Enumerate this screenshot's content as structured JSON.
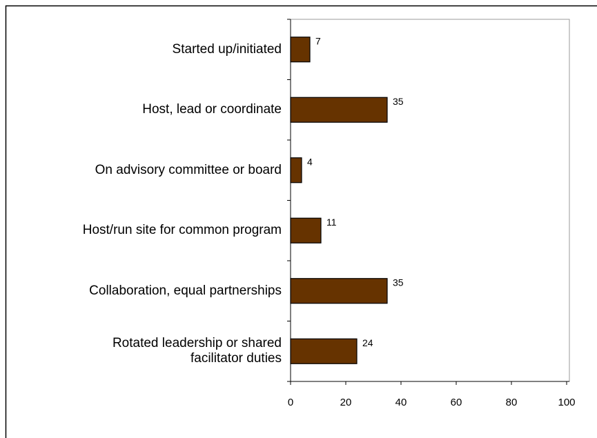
{
  "chart_data": {
    "type": "bar",
    "orientation": "horizontal",
    "categories": [
      "Started up/initiated",
      "Host, lead or coordinate",
      "On advisory committee or board",
      "Host/run site for common program",
      "Collaboration, equal partnerships",
      "Rotated leadership or shared\nfacilitator duties"
    ],
    "values": [
      7,
      35,
      4,
      11,
      35,
      24
    ],
    "color": "#663300",
    "xlim": [
      0,
      100
    ],
    "xticks": [
      0,
      20,
      40,
      60,
      80,
      100
    ],
    "grid": false
  }
}
